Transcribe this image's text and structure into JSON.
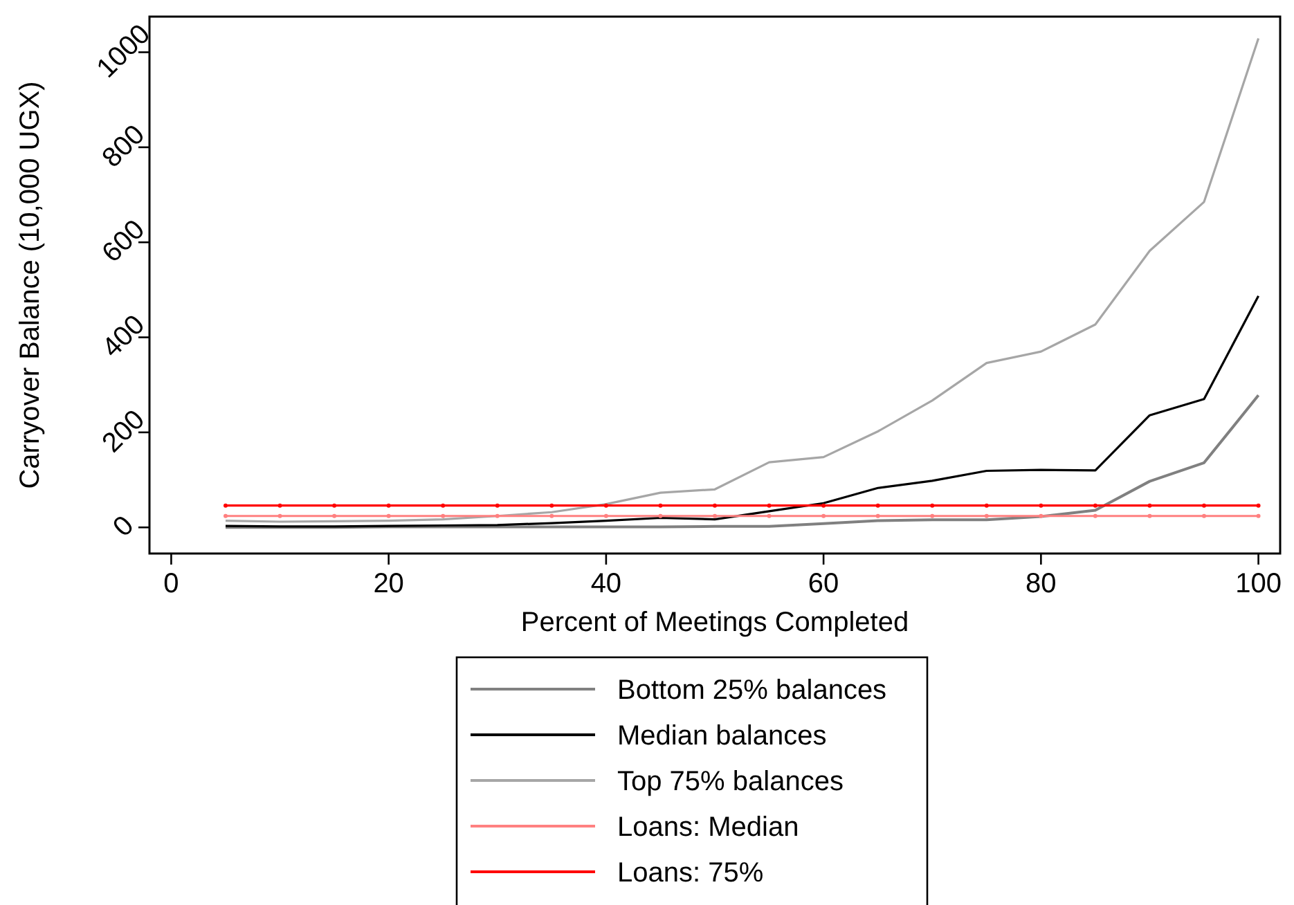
{
  "chart_data": {
    "type": "line",
    "xlabel": "Percent of Meetings Completed",
    "ylabel": "Carryover Balance (10,000 UGX)",
    "x": [
      5,
      10,
      15,
      20,
      25,
      30,
      35,
      40,
      45,
      50,
      55,
      60,
      65,
      70,
      75,
      80,
      85,
      90,
      95,
      100
    ],
    "series": [
      {
        "name": "Bottom 25% balances",
        "color": "#808080",
        "values": [
          0,
          0,
          0,
          1,
          1,
          1,
          1,
          1,
          1,
          2,
          2,
          8,
          14,
          16,
          16,
          23,
          36,
          97,
          136,
          278
        ]
      },
      {
        "name": "Median balances",
        "color": "#000000",
        "values": [
          3,
          2,
          2,
          3,
          4,
          5,
          9,
          14,
          20,
          17,
          34,
          51,
          83,
          98,
          119,
          121,
          120,
          236,
          270,
          487
        ]
      },
      {
        "name": "Top 75% balances",
        "color": "#a6a6a6",
        "values": [
          14,
          12,
          13,
          14,
          17,
          24,
          32,
          49,
          73,
          80,
          137,
          148,
          202,
          267,
          346,
          370,
          427,
          582,
          685,
          1029
        ]
      },
      {
        "name": "Loans: Median",
        "color": "#ff8080",
        "marker": "circle",
        "values": [
          24,
          24,
          24,
          24,
          24,
          24,
          24,
          24,
          24,
          24,
          24,
          24,
          24,
          24,
          24,
          24,
          24,
          24,
          24,
          24
        ]
      },
      {
        "name": "Loans: 75%",
        "color": "#ff0000",
        "marker": "circle",
        "values": [
          46,
          46,
          46,
          46,
          46,
          46,
          46,
          46,
          46,
          46,
          46,
          46,
          46,
          46,
          46,
          46,
          46,
          46,
          46,
          46
        ]
      }
    ],
    "xlim": [
      -2,
      102
    ],
    "ylim": [
      -55,
      1075
    ],
    "xticks": [
      0,
      20,
      40,
      60,
      80,
      100
    ],
    "yticks": [
      0,
      200,
      400,
      600,
      800,
      1000
    ],
    "legend": "bottom",
    "grid": false,
    "marker": "none",
    "line_style": "solid"
  }
}
